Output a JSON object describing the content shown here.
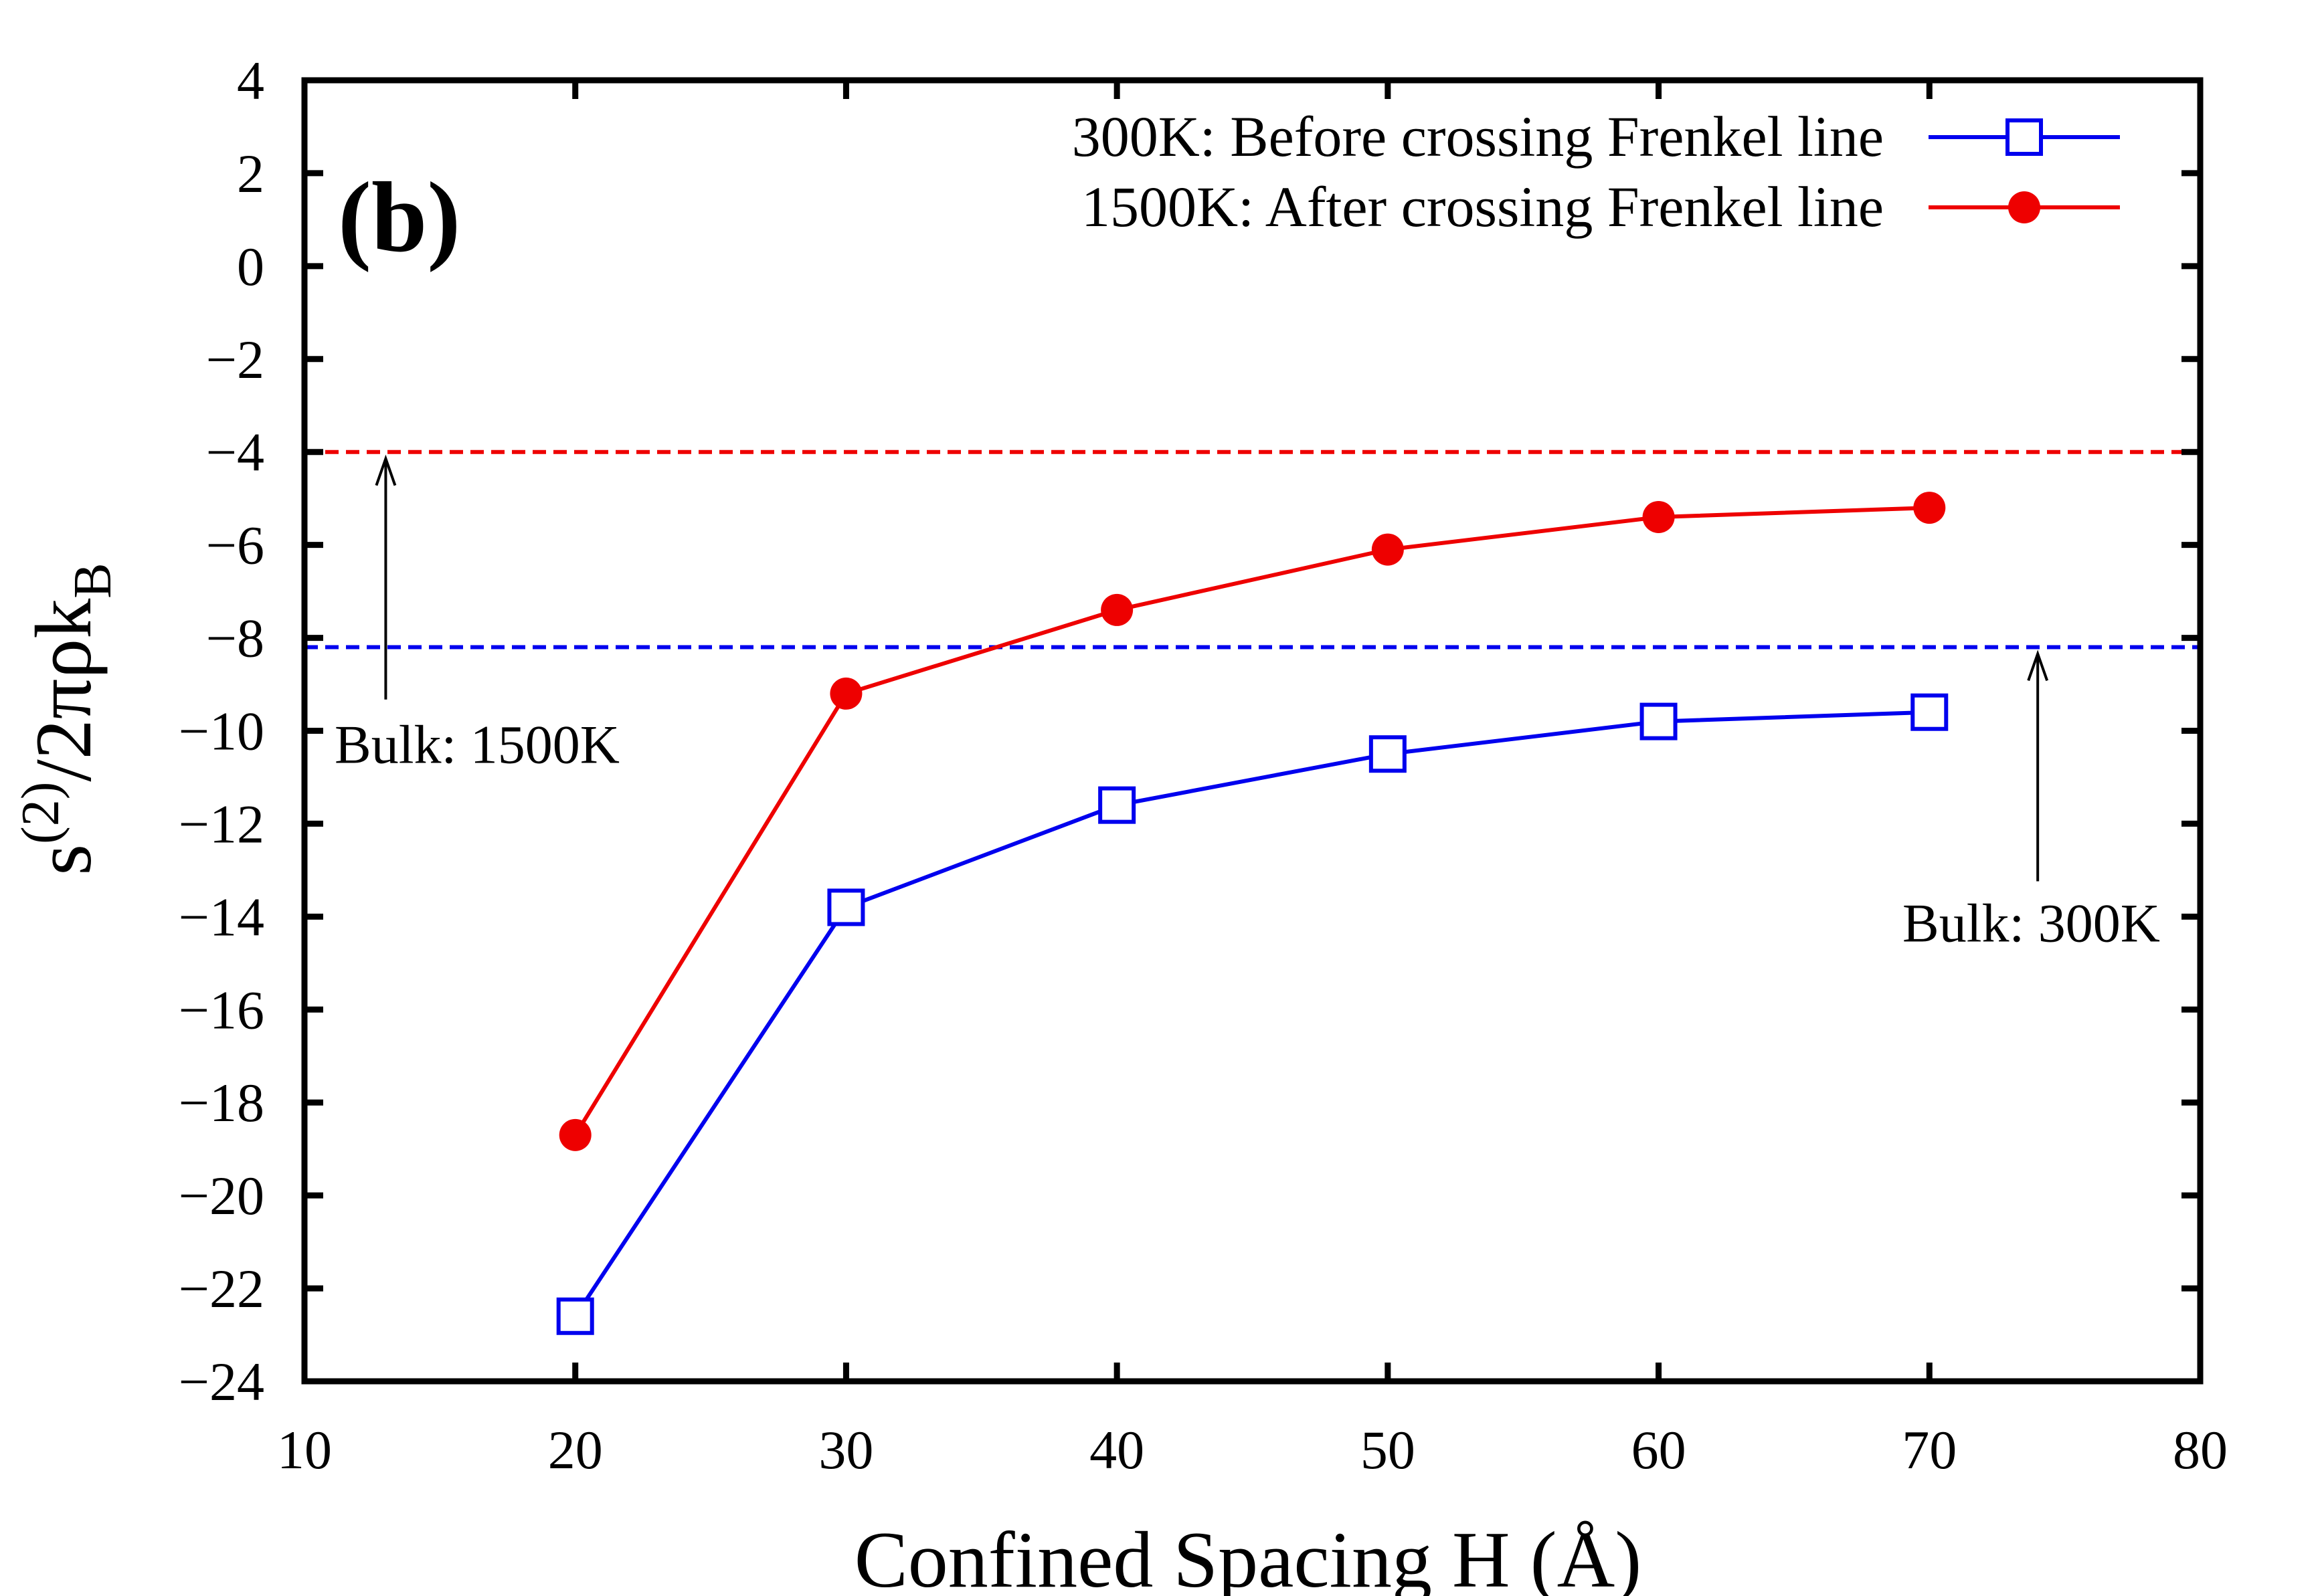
{
  "chart_data": {
    "type": "line",
    "panel_label": "(b)",
    "xlabel": "Confined Spacing H (Å)",
    "ylabel": {
      "base": "s",
      "superscript": "(2)",
      "mid": "/2πρk",
      "subscript": "B"
    },
    "xlim": [
      10,
      80
    ],
    "ylim": [
      -24,
      4
    ],
    "xticks": [
      10,
      20,
      30,
      40,
      50,
      60,
      70,
      80
    ],
    "yticks": [
      -24,
      -22,
      -20,
      -18,
      -16,
      -14,
      -12,
      -10,
      -8,
      -6,
      -4,
      -2,
      0,
      2,
      4
    ],
    "grid": false,
    "legend_position": "top-right",
    "series": [
      {
        "name": "300K: Before crossing Frenkel line",
        "color": "#0000ee",
        "marker": "open-square",
        "x": [
          20,
          30,
          40,
          50,
          60,
          70
        ],
        "y": [
          -22.6,
          -13.8,
          -11.6,
          -10.5,
          -9.8,
          -9.6
        ]
      },
      {
        "name": "1500K: After crossing Frenkel line",
        "color": "#ee0000",
        "marker": "filled-circle",
        "x": [
          20,
          30,
          40,
          50,
          60,
          70
        ],
        "y": [
          -18.7,
          -9.2,
          -7.4,
          -6.1,
          -5.4,
          -5.2
        ]
      }
    ],
    "reference_lines": [
      {
        "label": "Bulk: 1500K",
        "y": -4.0,
        "color": "#ee0000",
        "style": "dashed",
        "arrow_x": 13
      },
      {
        "label": "Bulk: 300K",
        "y": -8.2,
        "color": "#0000ee",
        "style": "dashed",
        "arrow_x": 74
      }
    ]
  }
}
